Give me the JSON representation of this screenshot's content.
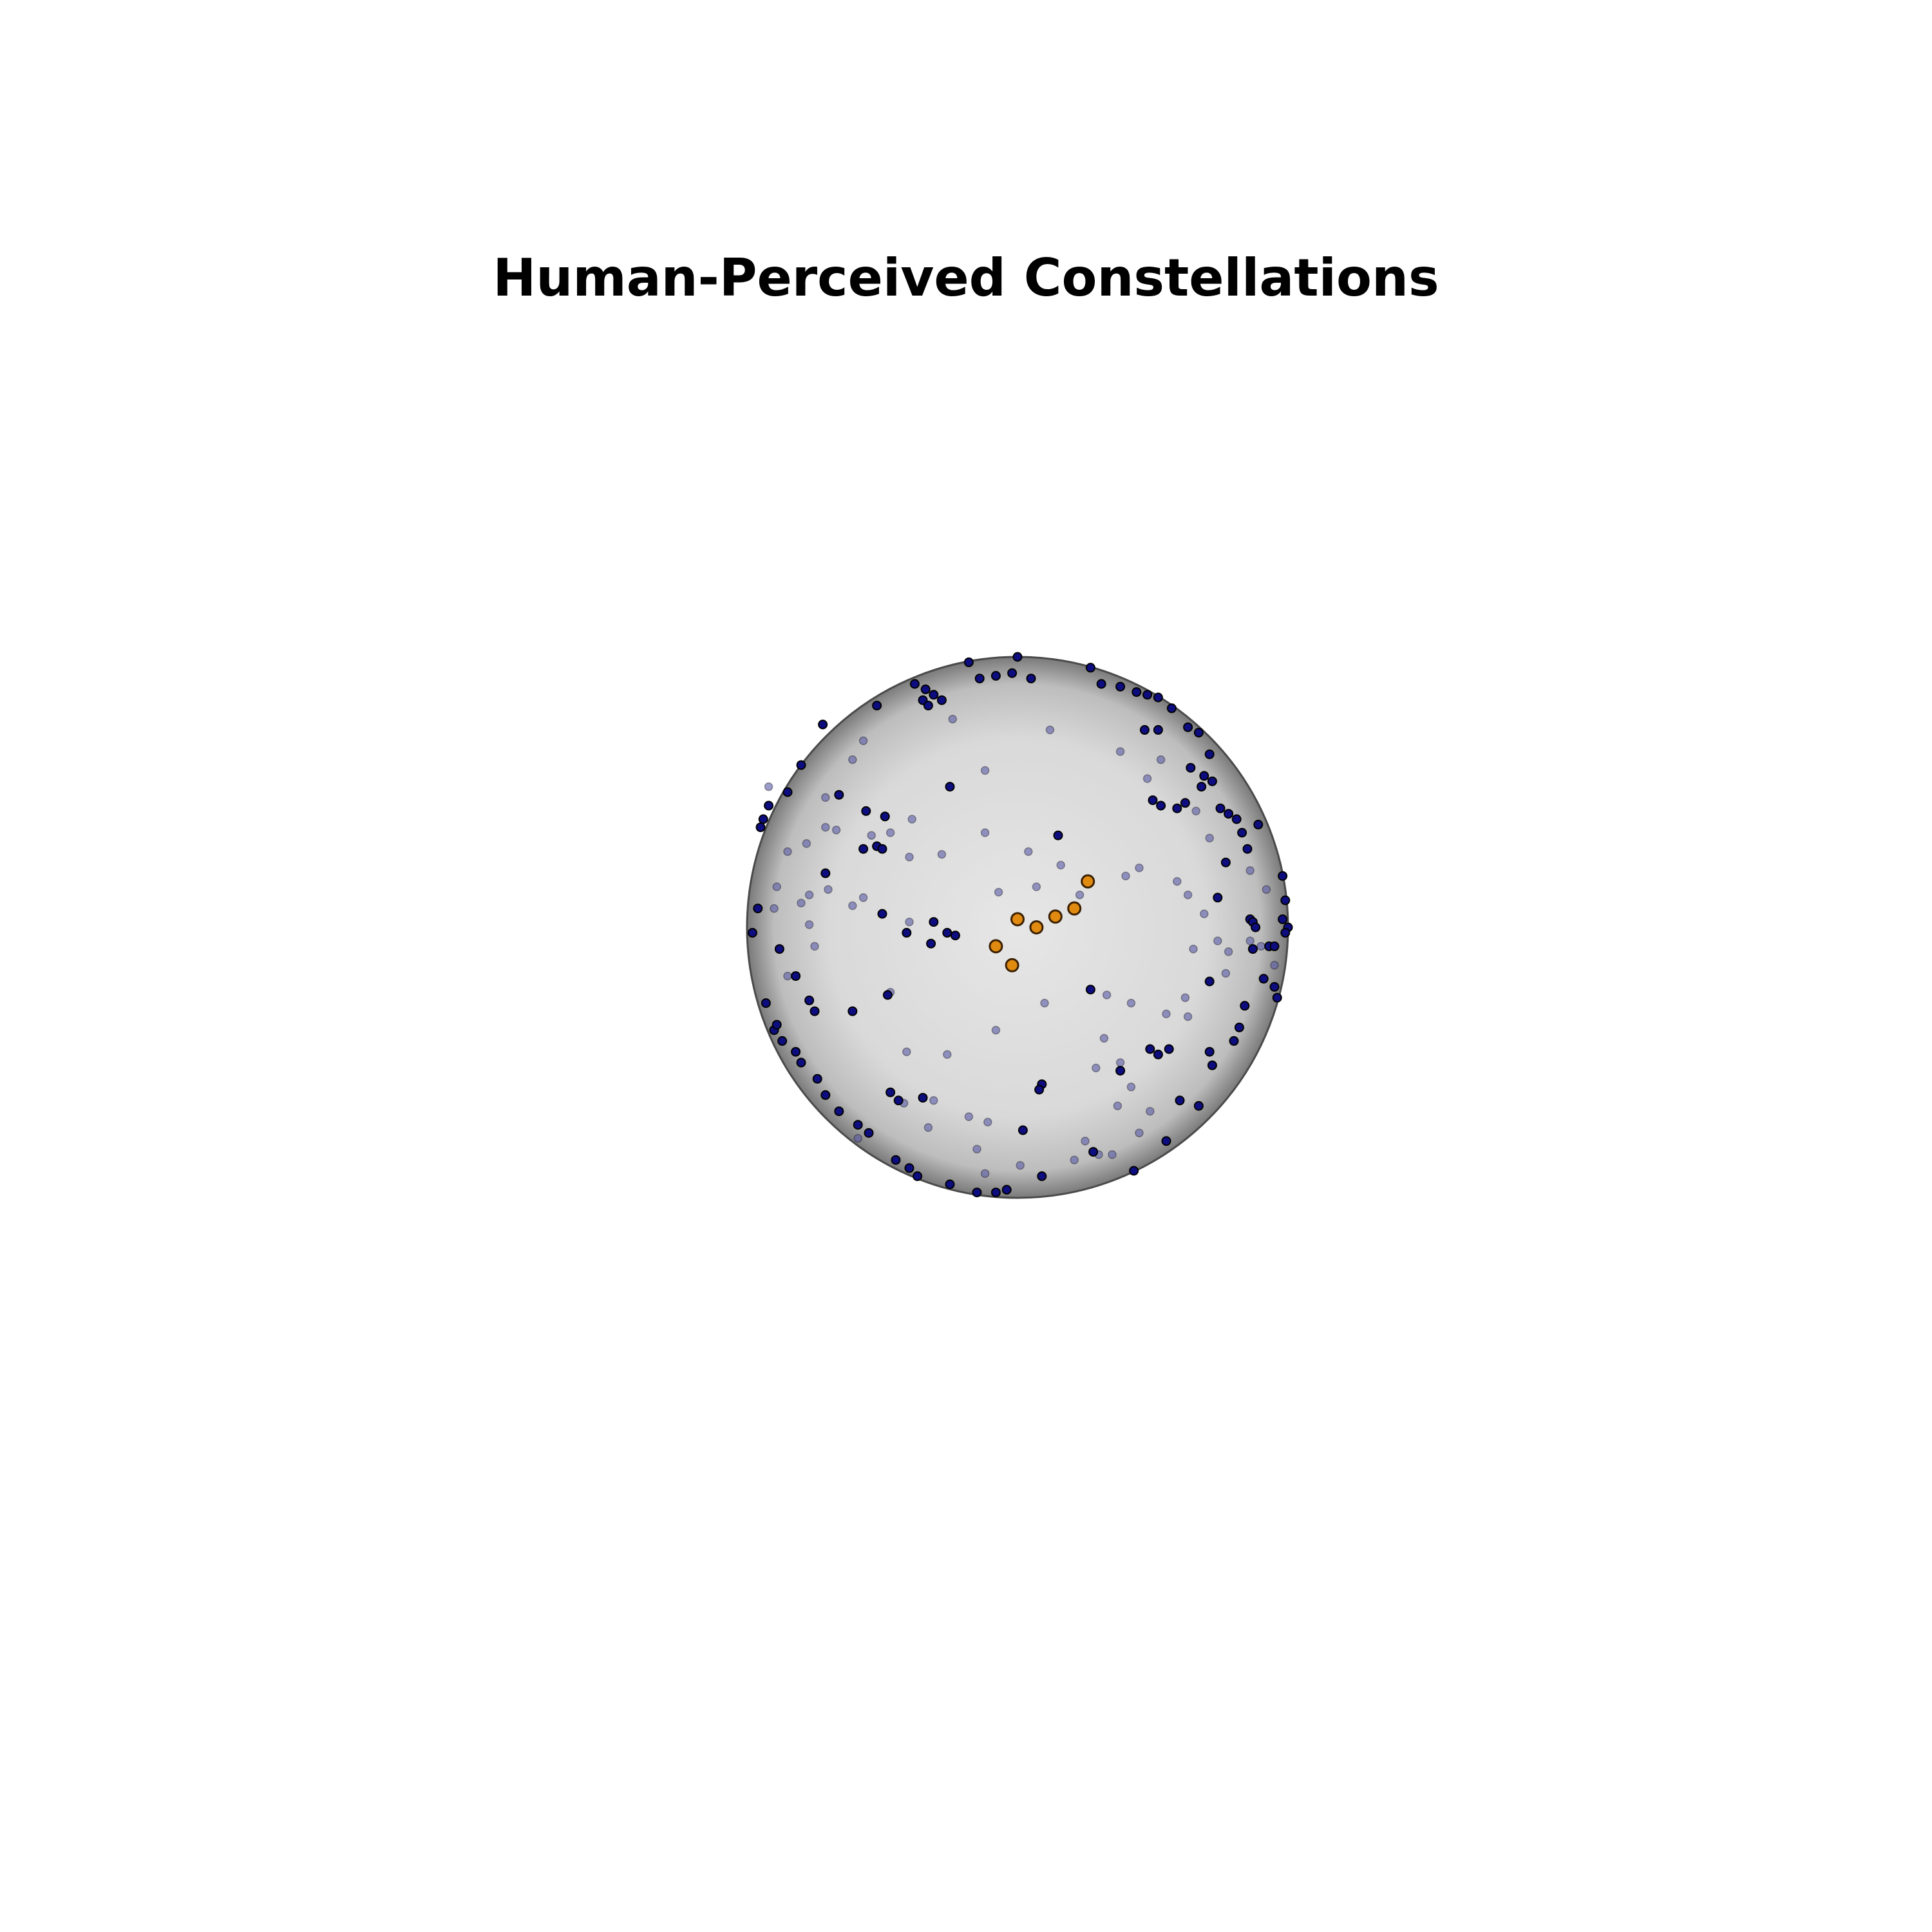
{
  "chart_data": {
    "type": "scatter",
    "title": "Human-Perceived Constellations",
    "xlabel": "",
    "ylabel": "",
    "grid": false,
    "legend": "none",
    "colors": {
      "sphere_fill": "#dcdcdc",
      "sphere_edge": "#4a4a4a",
      "star": "#0d0d80",
      "star_faded": "#5a5aa8",
      "star_edge": "#000000",
      "constellation": "#e08a10",
      "constellation_edge": "#3a2000"
    },
    "sphere": {
      "center": [
        0,
        0
      ],
      "radius": 1.0
    },
    "series": [
      {
        "role": "background stars (front hemisphere)",
        "points": [
          [
            0.0,
            1.0
          ],
          [
            -0.18,
            0.98
          ],
          [
            -0.38,
            0.9
          ],
          [
            -0.34,
            0.88
          ],
          [
            -0.31,
            0.86
          ],
          [
            -0.35,
            0.84
          ],
          [
            -0.14,
            0.92
          ],
          [
            -0.08,
            0.93
          ],
          [
            -0.02,
            0.94
          ],
          [
            0.27,
            0.96
          ],
          [
            0.31,
            0.9
          ],
          [
            0.38,
            0.89
          ],
          [
            0.44,
            0.87
          ],
          [
            0.48,
            0.86
          ],
          [
            0.52,
            0.85
          ],
          [
            0.57,
            0.81
          ],
          [
            0.47,
            0.73
          ],
          [
            0.52,
            0.73
          ],
          [
            0.63,
            0.74
          ],
          [
            0.67,
            0.72
          ],
          [
            0.71,
            0.64
          ],
          [
            0.64,
            0.59
          ],
          [
            0.69,
            0.56
          ],
          [
            0.72,
            0.54
          ],
          [
            0.68,
            0.52
          ],
          [
            0.5,
            0.47
          ],
          [
            0.53,
            0.45
          ],
          [
            0.59,
            0.44
          ],
          [
            0.62,
            0.46
          ],
          [
            0.75,
            0.44
          ],
          [
            0.78,
            0.42
          ],
          [
            0.81,
            0.4
          ],
          [
            0.89,
            0.38
          ],
          [
            0.83,
            0.35
          ],
          [
            0.85,
            0.29
          ],
          [
            0.77,
            0.24
          ],
          [
            0.98,
            0.19
          ],
          [
            0.99,
            0.1
          ],
          [
            0.74,
            0.11
          ],
          [
            0.86,
            0.03
          ],
          [
            0.87,
            0.02
          ],
          [
            0.88,
            0.0
          ],
          [
            0.98,
            0.03
          ],
          [
            1.0,
            0.0
          ],
          [
            0.99,
            -0.02
          ],
          [
            0.93,
            -0.07
          ],
          [
            0.95,
            -0.07
          ],
          [
            0.87,
            -0.08
          ],
          [
            0.71,
            -0.2
          ],
          [
            0.91,
            -0.19
          ],
          [
            0.95,
            -0.22
          ],
          [
            0.96,
            -0.26
          ],
          [
            0.84,
            -0.29
          ],
          [
            0.82,
            -0.37
          ],
          [
            0.8,
            -0.42
          ],
          [
            0.71,
            -0.46
          ],
          [
            0.72,
            -0.51
          ],
          [
            0.56,
            -0.45
          ],
          [
            0.49,
            -0.45
          ],
          [
            0.52,
            -0.47
          ],
          [
            0.6,
            -0.64
          ],
          [
            0.67,
            -0.66
          ],
          [
            0.55,
            -0.79
          ],
          [
            0.28,
            -0.83
          ],
          [
            0.09,
            -0.58
          ],
          [
            0.08,
            -0.6
          ],
          [
            0.02,
            -0.75
          ],
          [
            0.43,
            -0.9
          ],
          [
            -0.04,
            -0.97
          ],
          [
            -0.08,
            -0.98
          ],
          [
            -0.15,
            -0.98
          ],
          [
            -0.25,
            -0.95
          ],
          [
            -0.37,
            -0.92
          ],
          [
            -0.4,
            -0.89
          ],
          [
            -0.45,
            -0.86
          ],
          [
            -0.55,
            -0.76
          ],
          [
            -0.59,
            -0.73
          ],
          [
            -0.66,
            -0.68
          ],
          [
            -0.71,
            -0.62
          ],
          [
            -0.74,
            -0.56
          ],
          [
            -0.8,
            -0.5
          ],
          [
            -0.82,
            -0.46
          ],
          [
            -0.87,
            -0.42
          ],
          [
            -0.9,
            -0.38
          ],
          [
            -0.89,
            -0.36
          ],
          [
            -0.93,
            -0.28
          ],
          [
            -0.77,
            -0.27
          ],
          [
            -0.75,
            -0.31
          ],
          [
            -0.61,
            -0.31
          ],
          [
            -0.47,
            -0.61
          ],
          [
            -0.44,
            -0.64
          ],
          [
            -0.35,
            -0.63
          ],
          [
            -0.48,
            -0.25
          ],
          [
            -0.28,
            0.84
          ],
          [
            -0.96,
            0.07
          ],
          [
            -0.98,
            -0.02
          ],
          [
            -0.88,
            -0.08
          ],
          [
            -0.82,
            -0.18
          ],
          [
            -0.5,
            0.05
          ],
          [
            -0.32,
            -0.06
          ],
          [
            -0.23,
            -0.03
          ],
          [
            -0.26,
            -0.02
          ],
          [
            -0.31,
            0.02
          ],
          [
            -0.95,
            0.37
          ],
          [
            -0.94,
            0.4
          ],
          [
            -0.92,
            0.45
          ],
          [
            -0.85,
            0.5
          ],
          [
            -0.8,
            0.6
          ],
          [
            -0.72,
            0.75
          ],
          [
            -0.52,
            0.82
          ],
          [
            -0.25,
            0.52
          ],
          [
            -0.49,
            0.41
          ],
          [
            -0.33,
            0.82
          ],
          [
            -0.56,
            0.43
          ],
          [
            -0.66,
            0.49
          ],
          [
            -0.71,
            0.2
          ],
          [
            0.15,
            0.34
          ],
          [
            0.05,
            0.92
          ],
          [
            0.38,
            -0.53
          ],
          [
            0.27,
            -0.23
          ],
          [
            -0.57,
            0.29
          ],
          [
            -0.52,
            0.3
          ],
          [
            -0.5,
            0.29
          ],
          [
            -0.41,
            -0.02
          ],
          [
            0.09,
            -0.92
          ]
        ]
      },
      {
        "role": "background stars (far hemisphere, faded)",
        "points": [
          [
            -0.24,
            0.77
          ],
          [
            -0.12,
            0.58
          ],
          [
            0.12,
            0.73
          ],
          [
            0.38,
            0.65
          ],
          [
            0.48,
            0.55
          ],
          [
            -0.12,
            0.35
          ],
          [
            -0.28,
            0.27
          ],
          [
            0.04,
            0.28
          ],
          [
            0.07,
            0.15
          ],
          [
            0.16,
            0.23
          ],
          [
            0.23,
            0.12
          ],
          [
            0.4,
            0.19
          ],
          [
            0.45,
            0.22
          ],
          [
            0.59,
            0.17
          ],
          [
            0.63,
            0.12
          ],
          [
            0.69,
            0.05
          ],
          [
            0.74,
            -0.05
          ],
          [
            0.65,
            -0.08
          ],
          [
            0.77,
            -0.17
          ],
          [
            0.62,
            -0.26
          ],
          [
            0.55,
            -0.32
          ],
          [
            0.33,
            -0.25
          ],
          [
            0.32,
            -0.41
          ],
          [
            0.29,
            -0.52
          ],
          [
            0.42,
            -0.59
          ],
          [
            0.63,
            -0.33
          ],
          [
            0.1,
            -0.28
          ],
          [
            -0.08,
            -0.38
          ],
          [
            -0.47,
            -0.24
          ],
          [
            -0.41,
            -0.46
          ],
          [
            -0.31,
            -0.64
          ],
          [
            -0.42,
            -0.65
          ],
          [
            -0.18,
            -0.7
          ],
          [
            -0.11,
            -0.72
          ],
          [
            -0.15,
            -0.82
          ],
          [
            -0.33,
            -0.74
          ],
          [
            0.01,
            -0.88
          ],
          [
            0.25,
            -0.79
          ],
          [
            0.3,
            -0.84
          ],
          [
            0.35,
            -0.84
          ],
          [
            0.45,
            -0.76
          ],
          [
            0.38,
            -0.5
          ],
          [
            -0.61,
            0.08
          ],
          [
            -0.57,
            0.11
          ],
          [
            -0.7,
            0.14
          ],
          [
            -0.77,
            0.12
          ],
          [
            -0.78,
            0.31
          ],
          [
            -0.71,
            0.37
          ],
          [
            -0.8,
            0.09
          ],
          [
            -0.75,
            -0.07
          ],
          [
            -0.71,
            0.48
          ],
          [
            -0.67,
            0.36
          ],
          [
            -0.54,
            0.34
          ],
          [
            -0.47,
            0.35
          ],
          [
            -0.61,
            0.62
          ],
          [
            -0.57,
            0.69
          ],
          [
            -0.39,
            0.4
          ],
          [
            -0.4,
            0.26
          ],
          [
            -0.4,
            0.02
          ],
          [
            -0.85,
            -0.18
          ],
          [
            -0.77,
            0.01
          ],
          [
            -0.85,
            0.28
          ],
          [
            -0.9,
            0.07
          ],
          [
            -0.89,
            0.15
          ],
          [
            -0.92,
            0.52
          ],
          [
            -0.59,
            -0.78
          ],
          [
            -0.12,
            -0.91
          ],
          [
            0.37,
            -0.66
          ],
          [
            0.21,
            -0.86
          ],
          [
            0.53,
            0.62
          ],
          [
            0.66,
            0.43
          ],
          [
            0.86,
            0.21
          ],
          [
            0.92,
            0.14
          ],
          [
            0.9,
            -0.07
          ],
          [
            0.95,
            -0.14
          ],
          [
            0.86,
            -0.05
          ],
          [
            0.78,
            -0.09
          ],
          [
            0.71,
            0.33
          ],
          [
            0.49,
            -0.68
          ],
          [
            -0.26,
            -0.47
          ],
          [
            0.42,
            -0.28
          ],
          [
            -0.07,
            0.13
          ]
        ]
      },
      {
        "role": "highlighted constellation",
        "points": [
          [
            0.26,
            0.17
          ],
          [
            0.21,
            0.07
          ],
          [
            0.14,
            0.04
          ],
          [
            0.07,
            0.0
          ],
          [
            0.0,
            0.03
          ],
          [
            -0.08,
            -0.07
          ],
          [
            -0.02,
            -0.14
          ]
        ]
      }
    ]
  }
}
